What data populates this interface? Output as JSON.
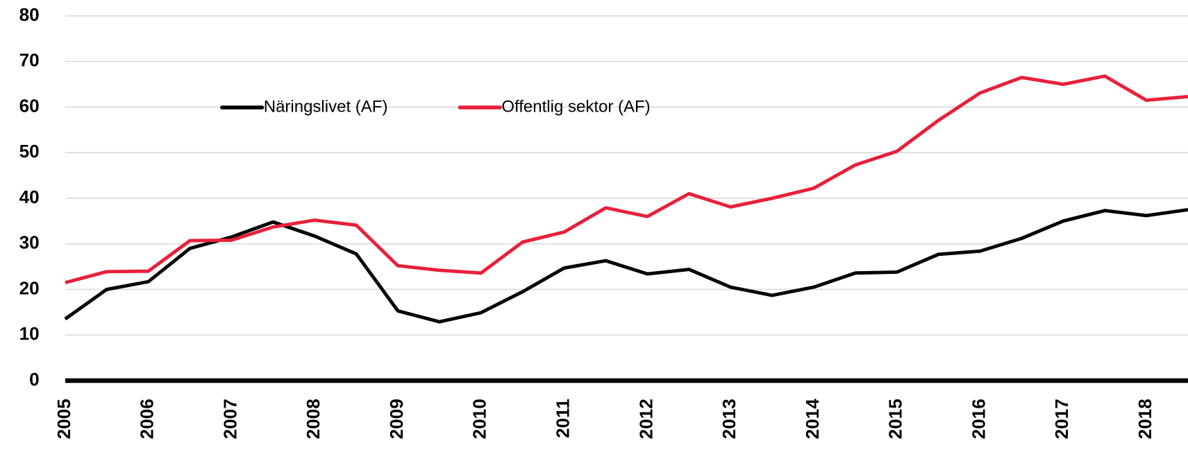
{
  "chart_data": {
    "type": "line",
    "x": [
      2005,
      2005.5,
      2006,
      2006.5,
      2007,
      2007.5,
      2008,
      2008.5,
      2009,
      2009.5,
      2010,
      2010.5,
      2011,
      2011.5,
      2012,
      2012.5,
      2013,
      2013.5,
      2014,
      2014.5,
      2015,
      2015.5,
      2016,
      2016.5,
      2017,
      2017.5,
      2018,
      2018.5
    ],
    "series": [
      {
        "name": "Näringslivet (AF)",
        "color": "#000000",
        "values": [
          13.5,
          20,
          21.7,
          29,
          31.5,
          34.8,
          31.7,
          27.8,
          15.3,
          12.9,
          14.9,
          19.5,
          24.7,
          26.3,
          23.4,
          24.4,
          20.5,
          18.7,
          20.5,
          23.6,
          23.8,
          27.7,
          28.4,
          31.2,
          35,
          37.3,
          36.2,
          37.5
        ]
      },
      {
        "name": "Offentlig sektor (AF)",
        "color": "#e8203a",
        "values": [
          21.5,
          23.9,
          24,
          30.7,
          30.8,
          33.7,
          35.2,
          34.1,
          25.2,
          24.2,
          23.6,
          30.4,
          32.6,
          37.9,
          36,
          41,
          38.1,
          40,
          42.2,
          47.3,
          50.3,
          57.1,
          63.1,
          66.5,
          65,
          66.8,
          61.5,
          62.3
        ]
      }
    ],
    "xlim": [
      2005,
      2018.5
    ],
    "xticks": [
      2005,
      2006,
      2007,
      2008,
      2009,
      2010,
      2011,
      2012,
      2013,
      2014,
      2015,
      2016,
      2017,
      2018
    ],
    "ylim": [
      0,
      80
    ],
    "yticks": [
      0,
      10,
      20,
      30,
      40,
      50,
      60,
      70,
      80
    ],
    "grid": true
  }
}
